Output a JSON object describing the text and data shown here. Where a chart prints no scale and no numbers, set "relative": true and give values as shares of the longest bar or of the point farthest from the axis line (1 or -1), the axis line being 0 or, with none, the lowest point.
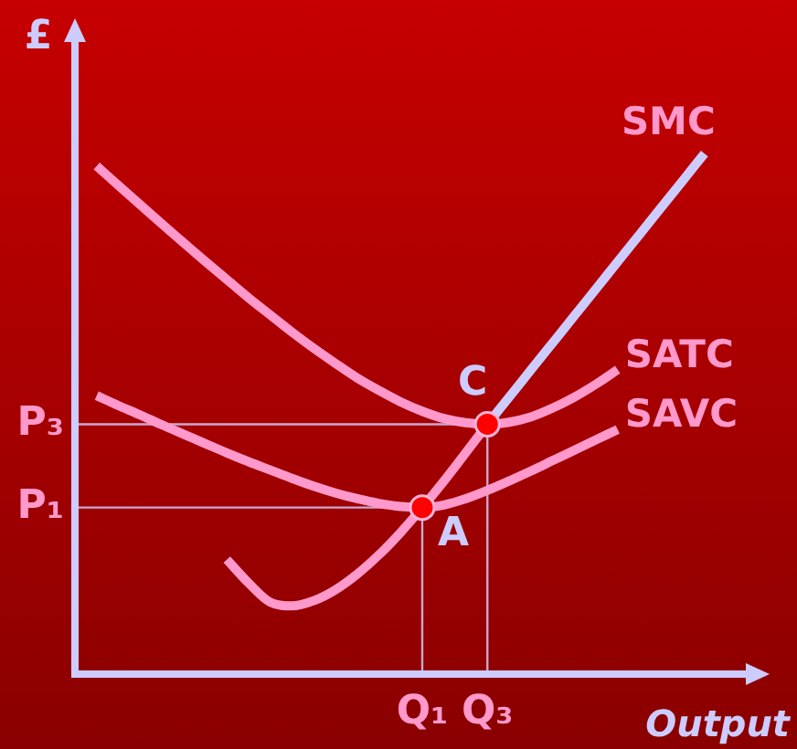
{
  "chart_data": {
    "type": "line",
    "relative": true,
    "xlabel": "Output",
    "ylabel": "£",
    "categories": [
      null,
      null,
      null,
      null,
      null,
      null,
      null,
      null,
      null,
      null,
      null,
      null,
      null,
      null,
      null,
      null,
      "Q₁",
      null,
      null,
      "Q₃",
      null,
      null,
      null,
      null,
      null,
      null,
      null,
      null,
      null,
      null,
      null,
      null,
      null
    ],
    "series": [
      {
        "name": "SATC",
        "color": "#ff99cc",
        "values": [
          null,
          0.976,
          0.939,
          0.902,
          0.865,
          0.829,
          0.793,
          0.758,
          0.723,
          0.69,
          0.657,
          0.626,
          0.597,
          0.569,
          0.545,
          0.523,
          0.505,
          0.491,
          0.483,
          0.48,
          0.484,
          0.494,
          0.511,
          0.532,
          0.557,
          0.585,
          null,
          null,
          null,
          null,
          null,
          null,
          null
        ]
      },
      {
        "name": "SAVC",
        "color": "#ff99cc",
        "values": [
          null,
          0.535,
          0.516,
          0.498,
          0.479,
          0.461,
          0.443,
          0.425,
          0.408,
          0.392,
          0.376,
          0.361,
          0.348,
          0.337,
          0.328,
          0.322,
          0.32,
          0.325,
          0.337,
          0.353,
          0.371,
          0.39,
          0.41,
          0.43,
          0.45,
          0.47,
          null,
          null,
          null,
          null,
          null,
          null,
          null
        ]
      },
      {
        "color": "#ff99cc",
        "values": [
          null,
          null,
          null,
          null,
          null,
          null,
          null,
          0.22,
          0.175,
          0.138,
          0.131,
          0.141,
          0.162,
          0.192,
          0.229,
          0.272,
          0.32,
          0.371,
          0.425,
          0.48,
          null,
          null,
          null,
          null,
          null,
          null,
          null,
          null,
          null,
          null,
          null,
          null,
          null
        ]
      },
      {
        "name": "SMC",
        "color": "#ccccff",
        "values": [
          null,
          null,
          null,
          null,
          null,
          null,
          null,
          null,
          null,
          null,
          null,
          null,
          null,
          null,
          null,
          null,
          null,
          null,
          null,
          0.48,
          0.532,
          0.584,
          0.636,
          0.688,
          0.74,
          0.792,
          0.844,
          0.896,
          0.948,
          1,
          null,
          null,
          null
        ]
      },
      {
        "type": "lollipop",
        "marker": "circle",
        "color": "#ff0000",
        "values": [
          null,
          null,
          null,
          null,
          null,
          null,
          null,
          null,
          null,
          null,
          null,
          null,
          null,
          null,
          null,
          null,
          0.32,
          null,
          null,
          0.48,
          null,
          null,
          null,
          null,
          null,
          null,
          null,
          null,
          null,
          null,
          null,
          null,
          null
        ]
      }
    ],
    "ref_lines": [
      {
        "axis": "y",
        "value": 0.48,
        "label": "P₃",
        "color": "#c8a8d0"
      },
      {
        "axis": "y",
        "value": 0.32,
        "label": "P₁",
        "color": "#c8a8d0"
      }
    ],
    "annotations": [
      {
        "text": "A",
        "x": "Q₁",
        "y": 0.32
      },
      {
        "text": "C",
        "x": "Q₃",
        "y": 0.48
      }
    ]
  }
}
